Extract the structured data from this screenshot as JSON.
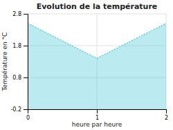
{
  "chart_data": {
    "type": "area",
    "title": "Evolution de la température",
    "xlabel": "heure par heure",
    "ylabel": "Température en °C",
    "x": [
      0,
      1,
      2
    ],
    "values": [
      2.5,
      1.4,
      2.5
    ],
    "xlim": [
      0,
      2
    ],
    "ylim": [
      -0.2,
      2.8
    ],
    "xticks": [
      0,
      1,
      2
    ],
    "yticks": [
      -0.2,
      0.8,
      1.8,
      2.8
    ],
    "grid": true,
    "line_style": "dotted",
    "color": "#55ccdd"
  }
}
